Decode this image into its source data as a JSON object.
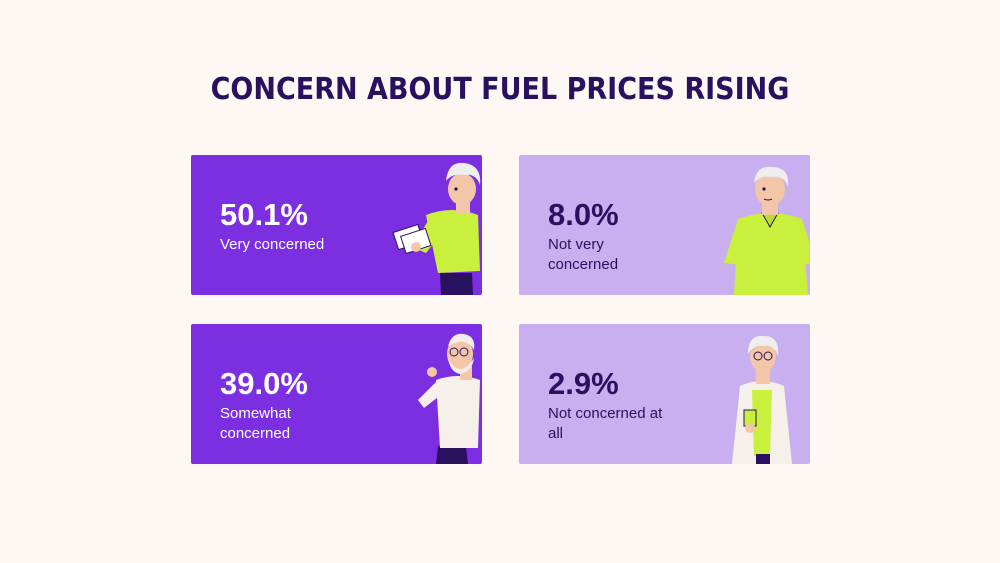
{
  "title": "CONCERN ABOUT FUEL PRICES RISING",
  "chart_data": {
    "type": "bar",
    "title": "CONCERN ABOUT FUEL PRICES RISING",
    "categories": [
      "Very concerned",
      "Not very concerned",
      "Somewhat concerned",
      "Not concerned at all"
    ],
    "values": [
      50.1,
      8.0,
      39.0,
      2.9
    ],
    "value_labels": [
      "50.1%",
      "8.0%",
      "39.0%",
      "2.9%"
    ],
    "unit": "%"
  },
  "colors": {
    "background": "#fdf8f3",
    "title": "#2a1160",
    "card_dark": "#7b2fe0",
    "card_light": "#c9aef0",
    "shirt_green": "#c8f03c"
  },
  "cards": [
    {
      "value": "50.1%",
      "label": "Very concerned",
      "figure": "man-reading-bills-illustration"
    },
    {
      "value": "8.0%",
      "label": "Not very concerned",
      "figure": "man-green-polo-illustration"
    },
    {
      "value": "39.0%",
      "label": "Somewhat concerned",
      "figure": "bearded-man-thinking-illustration"
    },
    {
      "value": "2.9%",
      "label": "Not concerned at all",
      "figure": "woman-with-cup-illustration"
    }
  ]
}
